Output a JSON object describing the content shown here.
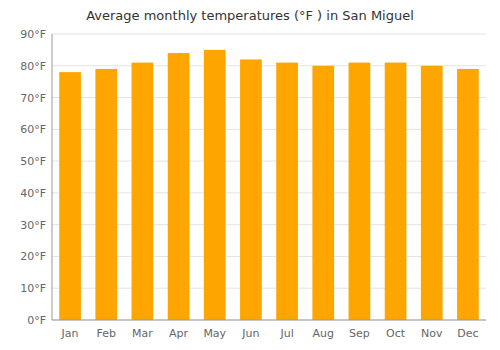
{
  "chart_data": {
    "type": "bar",
    "title": "Average monthly temperatures (°F ) in San Miguel",
    "categories": [
      "Jan",
      "Feb",
      "Mar",
      "Apr",
      "May",
      "Jun",
      "Jul",
      "Aug",
      "Sep",
      "Oct",
      "Nov",
      "Dec"
    ],
    "values": [
      78,
      79,
      81,
      84,
      85,
      82,
      81,
      80,
      81,
      81,
      80,
      79
    ],
    "color": "#FFA500",
    "ylim": [
      0,
      90
    ],
    "yticks": [
      {
        "value": 0,
        "label": "0°F"
      },
      {
        "value": 10,
        "label": "10°F"
      },
      {
        "value": 20,
        "label": "20°F"
      },
      {
        "value": 30,
        "label": "30°F"
      },
      {
        "value": 40,
        "label": "40°F"
      },
      {
        "value": 50,
        "label": "50°F"
      },
      {
        "value": 60,
        "label": "60°F"
      },
      {
        "value": 70,
        "label": "70°F"
      },
      {
        "value": 80,
        "label": "80°F"
      },
      {
        "value": 90,
        "label": "90°F"
      }
    ],
    "grid": true
  }
}
